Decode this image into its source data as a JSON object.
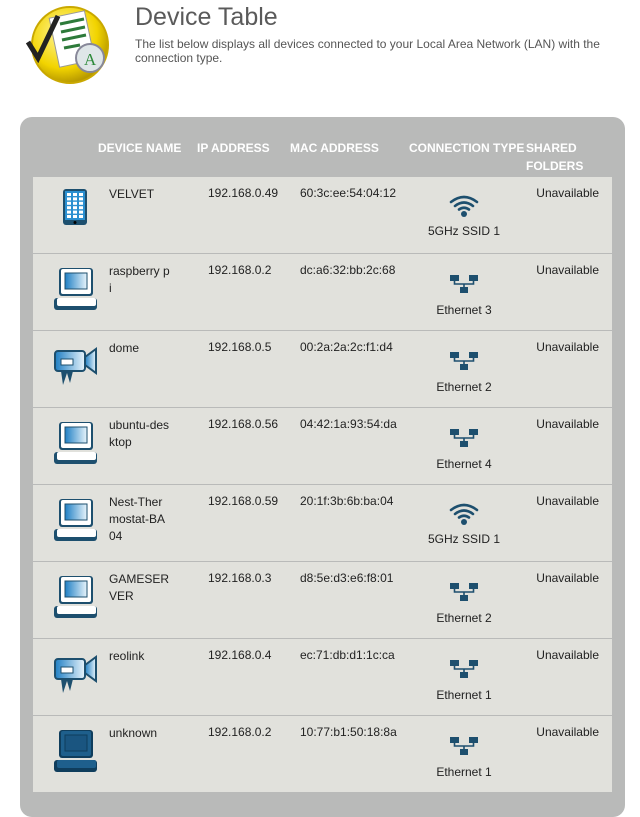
{
  "header": {
    "title": "Device Table",
    "description": "The list below displays all devices connected to your Local Area Network (LAN) with the connection type."
  },
  "columns": [
    "DEVICE NAME",
    "IP ADDRESS",
    "MAC ADDRESS",
    "CONNECTION TYPE",
    "SHARED",
    "FOLDERS"
  ],
  "colors": {
    "panel": "#b9bab9",
    "row": "#e1e1dc",
    "icon": "#1d4f6e"
  },
  "devices": [
    {
      "icon": "tablet-icon",
      "name": "VELVET",
      "ip": "192.168.0.49",
      "mac": "60:3c:ee:54:04:12",
      "connection": "5GHz SSID 1",
      "kind": "wifi",
      "shared": "Unavailable"
    },
    {
      "icon": "computer-icon",
      "name": "raspberry pi",
      "ip": "192.168.0.2",
      "mac": "dc:a6:32:bb:2c:68",
      "connection": "Ethernet 3",
      "kind": "ethernet",
      "shared": "Unavailable"
    },
    {
      "icon": "camera-icon",
      "name": "dome",
      "ip": "192.168.0.5",
      "mac": "00:2a:2a:2c:f1:d4",
      "connection": "Ethernet 2",
      "kind": "ethernet",
      "shared": "Unavailable"
    },
    {
      "icon": "computer-icon",
      "name": "ubuntu-desktop",
      "ip": "192.168.0.56",
      "mac": "04:42:1a:93:54:da",
      "connection": "Ethernet 4",
      "kind": "ethernet",
      "shared": "Unavailable"
    },
    {
      "icon": "computer-icon",
      "name": "Nest-Thermostat-BA04",
      "ip": "192.168.0.59",
      "mac": "20:1f:3b:6b:ba:04",
      "connection": "5GHz SSID 1",
      "kind": "wifi",
      "shared": "Unavailable"
    },
    {
      "icon": "computer-icon",
      "name": "GAMESERVER",
      "ip": "192.168.0.3",
      "mac": "d8:5e:d3:e6:f8:01",
      "connection": "Ethernet 2",
      "kind": "ethernet",
      "shared": "Unavailable"
    },
    {
      "icon": "camera-icon",
      "name": "reolink",
      "ip": "192.168.0.4",
      "mac": "ec:71:db:d1:1c:ca",
      "connection": "Ethernet 1",
      "kind": "ethernet",
      "shared": "Unavailable"
    },
    {
      "icon": "unknown-computer-icon",
      "name": "unknown",
      "ip": "192.168.0.2",
      "mac": "10:77:b1:50:18:8a",
      "connection": "Ethernet 1",
      "kind": "ethernet",
      "shared": "Unavailable"
    }
  ]
}
